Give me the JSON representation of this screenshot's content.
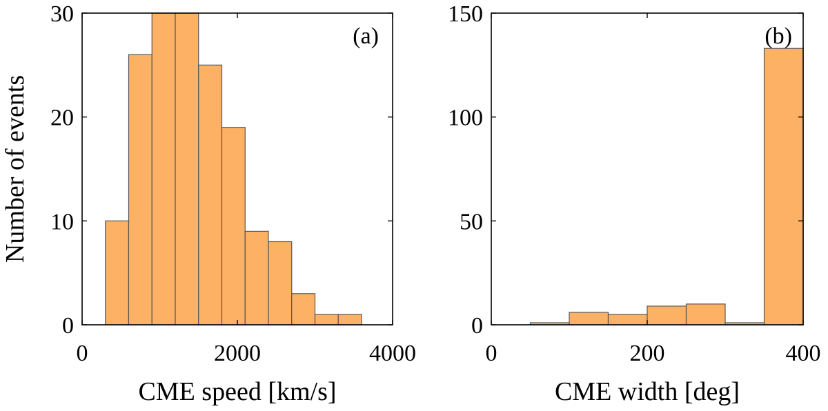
{
  "chart_data": [
    {
      "type": "bar",
      "panel_label": "(a)",
      "xlabel": "CME speed [km/s]",
      "ylabel": "Number of events",
      "xlim": [
        0,
        4000
      ],
      "ylim": [
        0,
        30
      ],
      "xticks": [
        0,
        2000,
        4000
      ],
      "yticks": [
        0,
        10,
        20,
        30
      ],
      "bin_edges": [
        300,
        600,
        900,
        1200,
        1500,
        1800,
        2100,
        2400,
        2700,
        3000,
        3300,
        3600
      ],
      "values": [
        10,
        26,
        31,
        31,
        25,
        19,
        9,
        8,
        3,
        1,
        1
      ],
      "color": "#fdb164"
    },
    {
      "type": "bar",
      "panel_label": "(b)",
      "xlabel": "CME width [deg]",
      "ylabel": "",
      "xlim": [
        0,
        400
      ],
      "ylim": [
        0,
        150
      ],
      "xticks": [
        0,
        200,
        400
      ],
      "yticks": [
        0,
        50,
        100,
        150
      ],
      "bin_edges": [
        0,
        50,
        100,
        150,
        200,
        250,
        300,
        350,
        400
      ],
      "values": [
        0,
        1,
        6,
        5,
        9,
        10,
        1,
        133
      ],
      "color": "#fdb164"
    }
  ]
}
